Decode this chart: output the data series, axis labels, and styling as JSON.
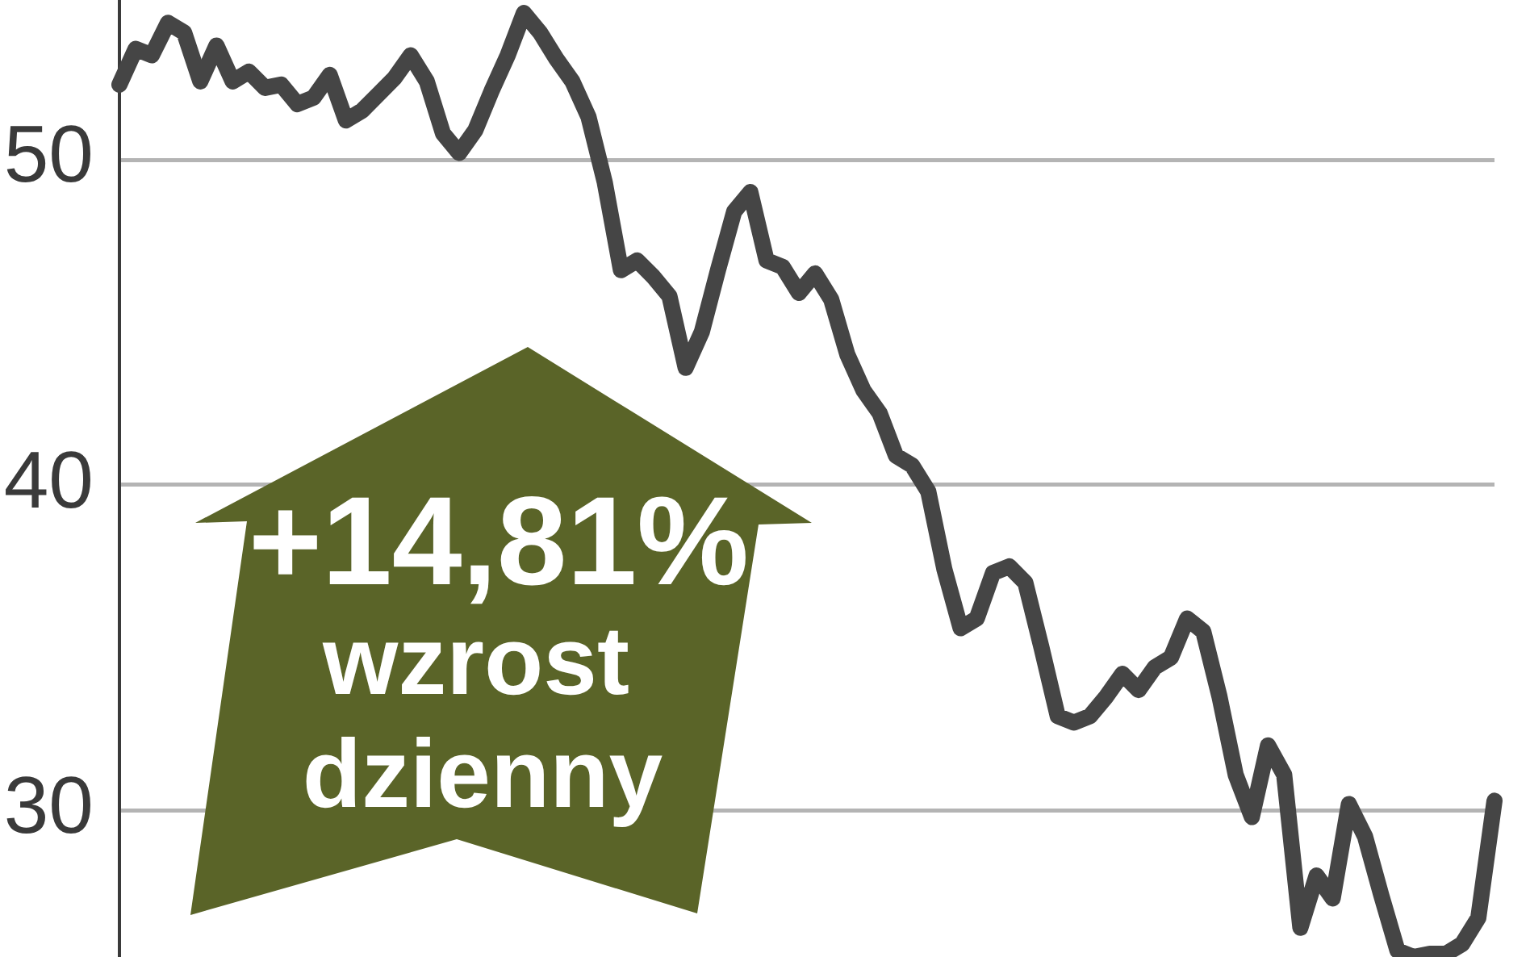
{
  "chart_data": {
    "type": "line",
    "categories": [
      null,
      null,
      null,
      null,
      null,
      null,
      null,
      null,
      null,
      null,
      null,
      null,
      null,
      null,
      null,
      null,
      null,
      null,
      null,
      null,
      null,
      null,
      null,
      null,
      null,
      null,
      null,
      null,
      null,
      null,
      null,
      null,
      null,
      null,
      null,
      null,
      null,
      null,
      null,
      null,
      null,
      null,
      null,
      null,
      null,
      null,
      null,
      null,
      null,
      null,
      null,
      null,
      null,
      null,
      null,
      null,
      null,
      null,
      null,
      null,
      null,
      null,
      null,
      null,
      null,
      null,
      null,
      null,
      null,
      null,
      null,
      null,
      null,
      null,
      null,
      null,
      null,
      null,
      null,
      null,
      null,
      null,
      null,
      null,
      null,
      null
    ],
    "series": [
      {
        "color": "#454545",
        "values": [
          52.3,
          53.4,
          53.2,
          54.2,
          53.9,
          52.4,
          53.5,
          52.4,
          52.7,
          52.2,
          52.3,
          51.7,
          51.9,
          52.6,
          51.2,
          51.5,
          52.0,
          52.5,
          53.2,
          52.4,
          50.8,
          50.2,
          50.9,
          52.1,
          53.2,
          54.5,
          53.9,
          53.1,
          52.4,
          51.3,
          49.3,
          46.6,
          46.9,
          46.4,
          45.8,
          43.6,
          44.7,
          46.6,
          48.4,
          49.0,
          46.9,
          46.7,
          45.9,
          46.5,
          45.7,
          44.0,
          42.9,
          42.2,
          40.9,
          40.6,
          39.8,
          37.4,
          35.6,
          35.9,
          37.3,
          37.5,
          37.0,
          35.0,
          32.9,
          32.7,
          32.9,
          33.5,
          34.2,
          33.7,
          34.4,
          34.7,
          35.9,
          35.5,
          33.5,
          31.1,
          29.8,
          32.0,
          31.1,
          26.4,
          28.0,
          27.3,
          30.2,
          29.2,
          27.4,
          25.7,
          25.5,
          25.6,
          25.6,
          25.9,
          26.7,
          30.3
        ]
      }
    ],
    "ylim": [
      25.5,
      54.9
    ],
    "yticks": [
      30,
      40,
      50
    ],
    "grid": "y",
    "tick_labels": "y",
    "annotations": [
      "+14,81%",
      "wzrost",
      "dzienny"
    ]
  }
}
